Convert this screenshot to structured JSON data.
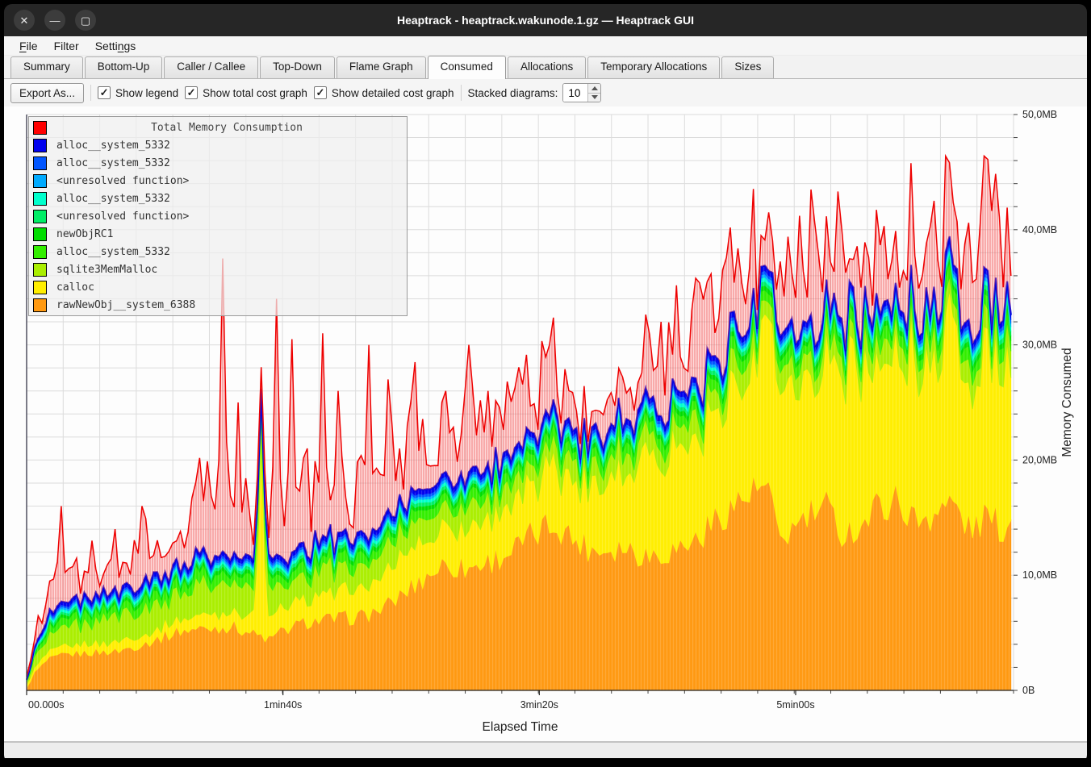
{
  "window": {
    "title": "Heaptrack - heaptrack.wakunode.1.gz — Heaptrack GUI",
    "controls": [
      {
        "name": "close",
        "glyph": "✕"
      },
      {
        "name": "minimize",
        "glyph": "—"
      },
      {
        "name": "maximize",
        "glyph": "▢"
      }
    ]
  },
  "menu": {
    "items": [
      {
        "name": "file",
        "pre": "",
        "accel": "F",
        "post": "ile"
      },
      {
        "name": "filter",
        "pre": "Filter",
        "accel": "",
        "post": ""
      },
      {
        "name": "settings",
        "pre": "Setti",
        "accel": "n",
        "post": "gs"
      }
    ]
  },
  "tabs": [
    {
      "label": "Summary",
      "active": false
    },
    {
      "label": "Bottom-Up",
      "active": false
    },
    {
      "label": "Caller / Callee",
      "active": false
    },
    {
      "label": "Top-Down",
      "active": false
    },
    {
      "label": "Flame Graph",
      "active": false
    },
    {
      "label": "Consumed",
      "active": true
    },
    {
      "label": "Allocations",
      "active": false
    },
    {
      "label": "Temporary Allocations",
      "active": false
    },
    {
      "label": "Sizes",
      "active": false
    }
  ],
  "toolbar": {
    "export_label": "Export As...",
    "checkboxes": [
      {
        "label": "Show legend",
        "checked": true
      },
      {
        "label": "Show total cost graph",
        "checked": true
      },
      {
        "label": "Show detailed cost graph",
        "checked": true
      }
    ],
    "stacked_label": "Stacked diagrams:",
    "stacked_value": "10",
    "checkmark_glyph": "✓"
  },
  "chart": {
    "x_axis_label": "Elapsed Time",
    "y_axis_label": "Memory Consumed",
    "x_tick_labels": [
      "00.000s",
      "1min40s",
      "3min20s",
      "5min00s"
    ],
    "x_tick_seconds": [
      0,
      100,
      200,
      300
    ],
    "y_tick_labels": [
      "0B",
      "10,0MB",
      "20,0MB",
      "30,0MB",
      "40,0MB",
      "50,0MB"
    ],
    "y_tick_mb": [
      0,
      10,
      20,
      30,
      40,
      50
    ]
  },
  "chart_data": {
    "type": "area",
    "stacked": true,
    "title": "Total Memory Consumption",
    "xlabel": "Elapsed Time",
    "ylabel": "Memory Consumed",
    "x_unit": "seconds",
    "y_unit": "MB",
    "x_range": [
      0,
      385
    ],
    "y_range": [
      0,
      50
    ],
    "grid": {
      "on": true,
      "x_divisions": 27,
      "y_divisions": 25
    },
    "legend_position": "top-left",
    "legend": [
      {
        "label": "Total Memory Consumption",
        "color": "#ff0000"
      },
      {
        "label": "alloc__system_5332",
        "color": "#0000ee"
      },
      {
        "label": "alloc__system_5332",
        "color": "#0055ff"
      },
      {
        "label": "<unresolved function>",
        "color": "#00aaff"
      },
      {
        "label": "alloc__system_5332",
        "color": "#00ffcc"
      },
      {
        "label": "<unresolved function>",
        "color": "#00ee66"
      },
      {
        "label": "newObjRC1",
        "color": "#00dd00"
      },
      {
        "label": "alloc__system_5332",
        "color": "#33ee00"
      },
      {
        "label": "sqlite3MemMalloc",
        "color": "#aaee00"
      },
      {
        "label": "calloc",
        "color": "#ffee00"
      },
      {
        "label": "rawNewObj__system_6388",
        "color": "#ff9911"
      }
    ],
    "series": [
      {
        "name": "rawNewObj__system_6388",
        "color": "#ff9911",
        "jitter": 0.11,
        "bias": "none",
        "anchors": [
          [
            0,
            0.2
          ],
          [
            3,
            1.5
          ],
          [
            8,
            2.6
          ],
          [
            15,
            3.1
          ],
          [
            25,
            3.3
          ],
          [
            35,
            3.4
          ],
          [
            45,
            4.0
          ],
          [
            55,
            4.8
          ],
          [
            60,
            5.2
          ],
          [
            70,
            5.4
          ],
          [
            80,
            5.6
          ],
          [
            90,
            4.8
          ],
          [
            95,
            4.4
          ],
          [
            100,
            5.2
          ],
          [
            110,
            6.0
          ],
          [
            120,
            6.2
          ],
          [
            130,
            6.4
          ],
          [
            140,
            7.2
          ],
          [
            148,
            8.6
          ],
          [
            155,
            9.8
          ],
          [
            163,
            11.0
          ],
          [
            172,
            10.6
          ],
          [
            180,
            11.2
          ],
          [
            190,
            12.2
          ],
          [
            200,
            13.8
          ],
          [
            207,
            14.6
          ],
          [
            213,
            13.2
          ],
          [
            222,
            12.2
          ],
          [
            232,
            12.6
          ],
          [
            242,
            11.8
          ],
          [
            252,
            12.2
          ],
          [
            262,
            13.2
          ],
          [
            272,
            15.6
          ],
          [
            282,
            17.0
          ],
          [
            289,
            17.6
          ],
          [
            293,
            13.2
          ],
          [
            298,
            13.8
          ],
          [
            305,
            15.2
          ],
          [
            312,
            15.8
          ],
          [
            318,
            13.8
          ],
          [
            325,
            14.2
          ],
          [
            333,
            16.2
          ],
          [
            340,
            16.6
          ],
          [
            347,
            14.6
          ],
          [
            355,
            15.8
          ],
          [
            362,
            16.2
          ],
          [
            368,
            13.8
          ],
          [
            374,
            15.2
          ],
          [
            380,
            14.2
          ],
          [
            385,
            14.6
          ]
        ]
      },
      {
        "name": "calloc",
        "color": "#ffee00",
        "jitter": 0.3,
        "bias": "down",
        "spikes": [
          [
            91,
            14.5
          ],
          [
            205,
            3
          ],
          [
            240,
            2.5
          ],
          [
            288,
            3.5
          ],
          [
            291,
            4.5
          ],
          [
            323,
            3.5
          ],
          [
            345,
            3
          ],
          [
            360,
            4.5
          ],
          [
            374,
            2.5
          ]
        ],
        "anchors": [
          [
            0,
            0.3
          ],
          [
            8,
            0.8
          ],
          [
            20,
            0.9
          ],
          [
            35,
            1.0
          ],
          [
            50,
            1.0
          ],
          [
            60,
            1.2
          ],
          [
            70,
            1.4
          ],
          [
            80,
            1.6
          ],
          [
            90,
            1.9
          ],
          [
            100,
            2.2
          ],
          [
            110,
            2.3
          ],
          [
            120,
            2.6
          ],
          [
            130,
            2.9
          ],
          [
            140,
            3.1
          ],
          [
            150,
            4.0
          ],
          [
            160,
            3.6
          ],
          [
            170,
            4.1
          ],
          [
            180,
            4.6
          ],
          [
            190,
            4.7
          ],
          [
            200,
            5.2
          ],
          [
            210,
            5.6
          ],
          [
            220,
            6.6
          ],
          [
            230,
            7.2
          ],
          [
            238,
            8.6
          ],
          [
            244,
            9.8
          ],
          [
            252,
            10.6
          ],
          [
            260,
            10.8
          ],
          [
            268,
            11.6
          ],
          [
            276,
            12.0
          ],
          [
            284,
            12.6
          ],
          [
            290,
            14.0
          ],
          [
            295,
            15.4
          ],
          [
            300,
            14.6
          ],
          [
            308,
            14.2
          ],
          [
            316,
            15.2
          ],
          [
            324,
            15.6
          ],
          [
            332,
            13.8
          ],
          [
            340,
            14.2
          ],
          [
            348,
            15.8
          ],
          [
            356,
            14.8
          ],
          [
            364,
            16.4
          ],
          [
            371,
            15.4
          ],
          [
            378,
            15.8
          ],
          [
            385,
            16.6
          ]
        ]
      },
      {
        "name": "sqlite3MemMalloc",
        "color": "#aaee00",
        "jitter": 0.45,
        "bias": "up",
        "anchors": [
          [
            0,
            0.15
          ],
          [
            5,
            1.1
          ],
          [
            15,
            1.5
          ],
          [
            30,
            1.7
          ],
          [
            50,
            2.0
          ],
          [
            70,
            2.3
          ],
          [
            90,
            2.1
          ],
          [
            110,
            1.9
          ],
          [
            140,
            1.7
          ],
          [
            170,
            1.6
          ],
          [
            200,
            1.5
          ],
          [
            240,
            1.4
          ],
          [
            280,
            1.5
          ],
          [
            320,
            1.6
          ],
          [
            355,
            1.5
          ],
          [
            385,
            1.6
          ]
        ]
      },
      {
        "name": "alloc__system_5332",
        "color": "#33ee00",
        "jitter": 0.3,
        "bias": "none",
        "anchors": [
          [
            0,
            0.08
          ],
          [
            8,
            0.55
          ],
          [
            30,
            0.75
          ],
          [
            60,
            0.8
          ],
          [
            100,
            0.8
          ],
          [
            150,
            0.8
          ],
          [
            200,
            0.85
          ],
          [
            260,
            0.9
          ],
          [
            320,
            1.0
          ],
          [
            385,
            1.0
          ]
        ]
      },
      {
        "name": "newObjRC1",
        "color": "#00dd00",
        "jitter": 0.15,
        "bias": "none",
        "anchors": [
          [
            0,
            0.04
          ],
          [
            10,
            0.28
          ],
          [
            60,
            0.32
          ],
          [
            150,
            0.35
          ],
          [
            250,
            0.4
          ],
          [
            385,
            0.45
          ]
        ]
      },
      {
        "name": "<unresolved function>",
        "color": "#00ee66",
        "jitter": 0.15,
        "bias": "none",
        "anchors": [
          [
            0,
            0.03
          ],
          [
            10,
            0.22
          ],
          [
            100,
            0.28
          ],
          [
            250,
            0.34
          ],
          [
            385,
            0.4
          ]
        ]
      },
      {
        "name": "alloc__system_5332",
        "color": "#00ffcc",
        "jitter": 0.15,
        "bias": "none",
        "anchors": [
          [
            0,
            0.03
          ],
          [
            10,
            0.22
          ],
          [
            100,
            0.26
          ],
          [
            250,
            0.3
          ],
          [
            385,
            0.35
          ]
        ]
      },
      {
        "name": "<unresolved function>",
        "color": "#00aaff",
        "jitter": 0.12,
        "bias": "none",
        "anchors": [
          [
            0,
            0.02
          ],
          [
            10,
            0.18
          ],
          [
            150,
            0.24
          ],
          [
            385,
            0.3
          ]
        ]
      },
      {
        "name": "alloc__system_5332",
        "color": "#0055ff",
        "jitter": 0.12,
        "bias": "none",
        "anchors": [
          [
            0,
            0.02
          ],
          [
            10,
            0.18
          ],
          [
            150,
            0.24
          ],
          [
            385,
            0.3
          ]
        ]
      },
      {
        "name": "alloc__system_5332",
        "color": "#0000ee",
        "jitter": 0.1,
        "bias": "none",
        "anchors": [
          [
            0,
            0.04
          ],
          [
            10,
            0.3
          ],
          [
            150,
            0.38
          ],
          [
            385,
            0.45
          ]
        ]
      }
    ],
    "total": {
      "name": "Total Memory Consumption",
      "color": "#ee0000",
      "cap_mb": 46.4,
      "extra_anchors": [
        [
          0,
          0.4
        ],
        [
          6,
          2.5
        ],
        [
          14,
          4.5
        ],
        [
          22,
          3.5
        ],
        [
          30,
          3.0
        ],
        [
          40,
          4.5
        ],
        [
          52,
          5.0
        ],
        [
          62,
          6.5
        ],
        [
          70,
          9.0
        ],
        [
          76,
          12.0
        ],
        [
          84,
          9.0
        ],
        [
          91,
          4.0
        ],
        [
          97,
          11.0
        ],
        [
          105,
          10.0
        ],
        [
          115,
          10.5
        ],
        [
          125,
          8.0
        ],
        [
          133,
          10.0
        ],
        [
          141,
          8.5
        ],
        [
          152,
          8.0
        ],
        [
          163,
          7.0
        ],
        [
          172,
          8.5
        ],
        [
          182,
          7.5
        ],
        [
          192,
          6.5
        ],
        [
          202,
          7.5
        ],
        [
          212,
          6.0
        ],
        [
          222,
          5.5
        ],
        [
          232,
          6.5
        ],
        [
          240,
          8.0
        ],
        [
          250,
          9.0
        ],
        [
          260,
          9.5
        ],
        [
          270,
          10.0
        ],
        [
          280,
          11.0
        ],
        [
          290,
          7.0
        ],
        [
          297,
          11.5
        ],
        [
          305,
          11.5
        ],
        [
          315,
          10.5
        ],
        [
          325,
          11.0
        ],
        [
          335,
          10.5
        ],
        [
          345,
          10.0
        ],
        [
          355,
          11.0
        ],
        [
          365,
          10.0
        ],
        [
          375,
          11.0
        ],
        [
          385,
          11.0
        ]
      ],
      "spikes": [
        [
          14,
          16
        ],
        [
          26,
          13
        ],
        [
          34,
          14
        ],
        [
          45,
          16
        ],
        [
          76,
          37.5
        ],
        [
          83,
          25
        ],
        [
          97,
          34
        ],
        [
          104,
          30.5
        ],
        [
          115,
          31
        ],
        [
          122,
          26
        ],
        [
          133,
          30
        ],
        [
          141,
          27
        ],
        [
          152,
          28.5
        ],
        [
          163,
          26
        ],
        [
          172,
          30
        ],
        [
          180,
          26
        ],
        [
          190,
          25
        ],
        [
          197,
          22.5
        ],
        [
          205,
          28
        ],
        [
          212,
          25.5
        ],
        [
          226,
          24
        ],
        [
          233,
          26
        ],
        [
          247,
          32
        ],
        [
          253,
          34
        ],
        [
          259,
          33
        ],
        [
          265,
          35.5
        ],
        [
          271,
          36.5
        ],
        [
          277,
          34
        ]
      ]
    }
  }
}
